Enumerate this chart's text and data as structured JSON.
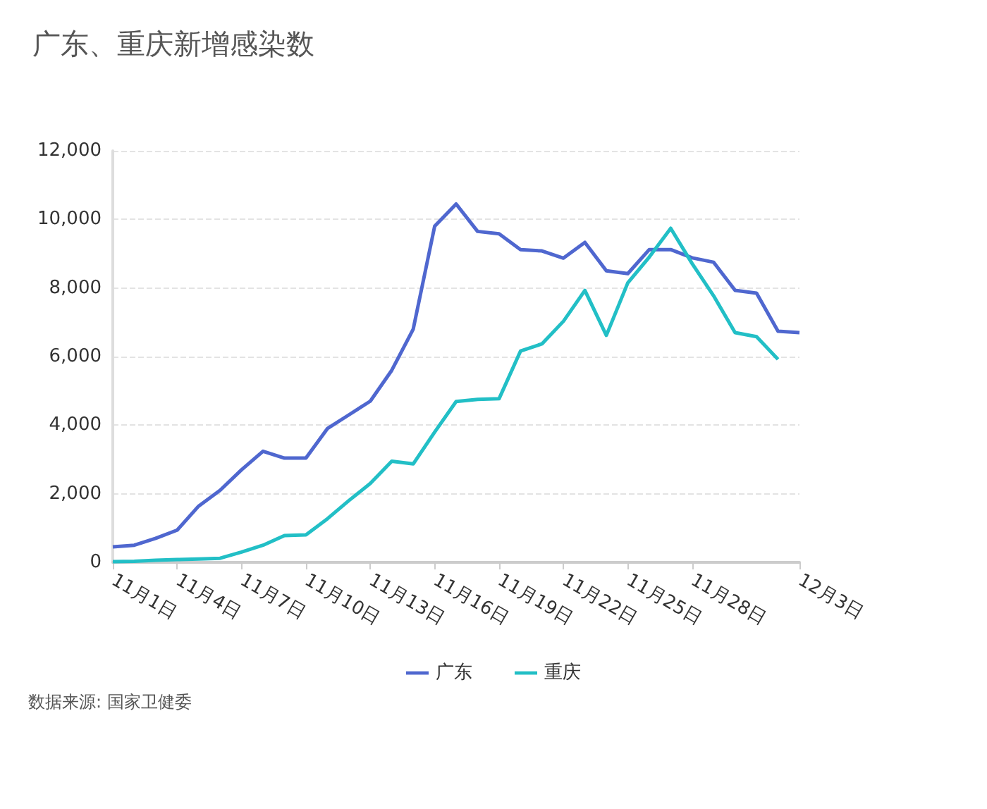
{
  "chart_data": {
    "type": "line",
    "title": "广东、重庆新增感染数",
    "categories": [
      "11月1日",
      null,
      null,
      "11月4日",
      null,
      null,
      "11月7日",
      null,
      null,
      "11月10日",
      null,
      null,
      "11月13日",
      null,
      null,
      "11月16日",
      null,
      null,
      "11月19日",
      null,
      null,
      "11月22日",
      null,
      null,
      "11月25日",
      null,
      null,
      "11月28日",
      null,
      null,
      null,
      null,
      "12月3日"
    ],
    "series": [
      {
        "name": "广东",
        "color": "#4f67cf",
        "values": [
          450,
          500,
          700,
          940,
          1640,
          2100,
          2700,
          3240,
          3040,
          3040,
          3900,
          4300,
          4700,
          5600,
          6800,
          9800,
          10450,
          9650,
          9580,
          9120,
          9080,
          8870,
          9330,
          8500,
          8420,
          9120,
          9120,
          8880,
          8750,
          7930,
          7850,
          6740,
          6700
        ]
      },
      {
        "name": "重庆",
        "color": "#22bfc6",
        "values": [
          20,
          30,
          60,
          80,
          100,
          120,
          300,
          500,
          780,
          800,
          1270,
          1800,
          2300,
          2950,
          2870,
          3800,
          4690,
          4750,
          4770,
          6160,
          6370,
          7030,
          7930,
          6620,
          8150,
          8900,
          9740,
          8710,
          7770,
          6700,
          6580,
          5920,
          null
        ]
      }
    ],
    "ylim": [
      0,
      12000
    ],
    "yticks": [
      0,
      {
        "value": 2000,
        "label": "2,000"
      },
      {
        "value": 4000,
        "label": "4,000"
      },
      {
        "value": 6000,
        "label": "6,000"
      },
      {
        "value": 8000,
        "label": "8,000"
      },
      {
        "value": 10000,
        "label": "10,000"
      },
      {
        "value": 12000,
        "label": "12,000"
      }
    ],
    "grid": "y",
    "legend": "bottom",
    "marker": "none",
    "line_style": "solid",
    "annotations": [
      "数据来源: 国家卫健委"
    ]
  }
}
